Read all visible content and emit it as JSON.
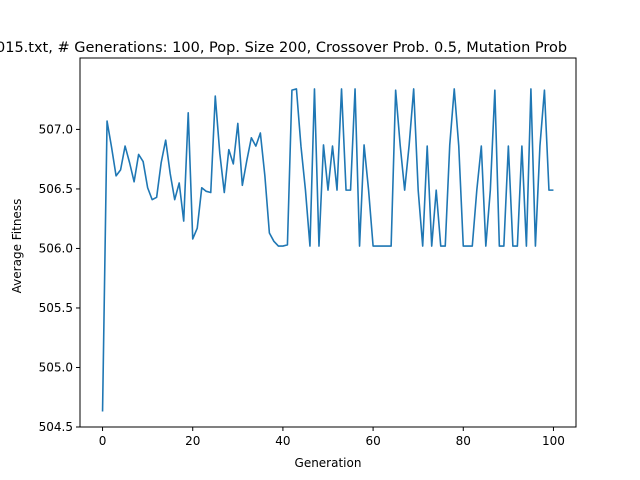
{
  "chart_data": {
    "type": "line",
    "title": "015.txt, # Generations: 100, Pop. Size 200, Crossover Prob. 0.5, Mutation Prob",
    "xlabel": "Generation",
    "ylabel": "Average Fitness",
    "xlim": [
      -5,
      105
    ],
    "ylim": [
      504.5,
      507.6
    ],
    "xticks": [
      0,
      20,
      40,
      60,
      80,
      100
    ],
    "xtick_labels": [
      "0",
      "20",
      "40",
      "60",
      "80",
      "100"
    ],
    "yticks": [
      504.5,
      505.0,
      505.5,
      506.0,
      506.5,
      507.0
    ],
    "ytick_labels": [
      "504.5",
      "505.0",
      "505.5",
      "506.0",
      "506.5",
      "507.0"
    ],
    "grid": false,
    "series": [
      {
        "color": "#1f77b4",
        "x": [
          0,
          1,
          2,
          3,
          4,
          5,
          6,
          7,
          8,
          9,
          10,
          11,
          12,
          13,
          14,
          15,
          16,
          17,
          18,
          19,
          20,
          21,
          22,
          23,
          24,
          25,
          26,
          27,
          28,
          29,
          30,
          31,
          32,
          33,
          34,
          35,
          36,
          37,
          38,
          39,
          40,
          41,
          42,
          43,
          44,
          45,
          46,
          47,
          48,
          49,
          50,
          51,
          52,
          53,
          54,
          55,
          56,
          57,
          58,
          59,
          60,
          61,
          62,
          63,
          64,
          65,
          66,
          67,
          68,
          69,
          70,
          71,
          72,
          73,
          74,
          75,
          76,
          77,
          78,
          79,
          80,
          81,
          82,
          83,
          84,
          85,
          86,
          87,
          88,
          89,
          90,
          91,
          92,
          93,
          94,
          95,
          96,
          97,
          98,
          99,
          100
        ],
        "values": [
          504.63,
          507.07,
          506.85,
          506.61,
          506.66,
          506.86,
          506.72,
          506.56,
          506.79,
          506.73,
          506.51,
          506.41,
          506.43,
          506.72,
          506.91,
          506.63,
          506.41,
          506.55,
          506.23,
          507.14,
          506.08,
          506.17,
          506.51,
          506.48,
          506.47,
          507.28,
          506.8,
          506.47,
          506.83,
          506.71,
          507.05,
          506.53,
          506.74,
          506.93,
          506.86,
          506.97,
          506.61,
          506.13,
          506.06,
          506.02,
          506.02,
          506.03,
          507.33,
          507.34,
          506.86,
          506.49,
          506.02,
          507.34,
          506.02,
          506.87,
          506.49,
          506.86,
          506.49,
          507.34,
          506.49,
          506.49,
          507.34,
          506.02,
          506.87,
          506.49,
          506.02,
          506.02,
          506.02,
          506.02,
          506.02,
          507.33,
          506.87,
          506.49,
          506.87,
          507.34,
          506.49,
          506.02,
          506.86,
          506.02,
          506.49,
          506.02,
          506.02,
          506.87,
          507.34,
          506.86,
          506.02,
          506.02,
          506.02,
          506.49,
          506.86,
          506.02,
          506.49,
          507.33,
          506.02,
          506.02,
          506.86,
          506.02,
          506.02,
          506.86,
          506.02,
          507.34,
          506.02,
          506.86,
          507.33,
          506.49,
          506.49
        ]
      }
    ]
  }
}
